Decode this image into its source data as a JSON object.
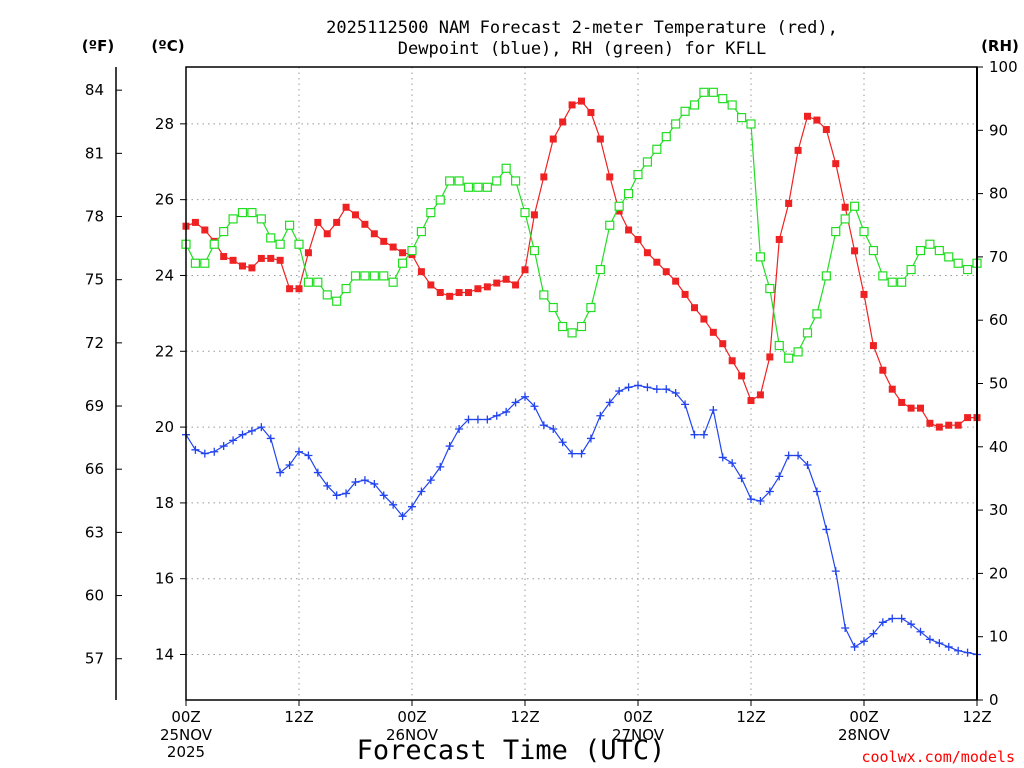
{
  "chart_data": {
    "type": "line",
    "title_line1": "2025112500 NAM Forecast 2-meter Temperature (red),",
    "title_line2": "Dewpoint (blue), RH (green) for KFLL",
    "xlabel": "Forecast Time (UTC)",
    "credit": "coolwx.com/models",
    "left_outer_unit": "(ºF)",
    "left_inner_unit": "(ºC)",
    "right_unit": "(RH)",
    "x_range_hours": [
      0,
      84
    ],
    "y_celsius_range": [
      12.8,
      29.5
    ],
    "y_rh_range": [
      0,
      100
    ],
    "fahrenheit_ticks": [
      "84",
      "81",
      "78",
      "75",
      "72",
      "69",
      "66",
      "63",
      "60",
      "57"
    ],
    "celsius_ticks": [
      "28",
      "26",
      "24",
      "22",
      "20",
      "18",
      "16",
      "14"
    ],
    "rh_ticks": [
      "100",
      "90",
      "80",
      "70",
      "60",
      "50",
      "40",
      "30",
      "20",
      "10",
      "0"
    ],
    "x_ticks": [
      {
        "hour": 0,
        "line1": "00Z",
        "line2": "25NOV",
        "line3": "2025"
      },
      {
        "hour": 12,
        "line1": "12Z",
        "line2": "",
        "line3": ""
      },
      {
        "hour": 24,
        "line1": "00Z",
        "line2": "26NOV",
        "line3": ""
      },
      {
        "hour": 36,
        "line1": "12Z",
        "line2": "",
        "line3": ""
      },
      {
        "hour": 48,
        "line1": "00Z",
        "line2": "27NOV",
        "line3": ""
      },
      {
        "hour": 60,
        "line1": "12Z",
        "line2": "",
        "line3": ""
      },
      {
        "hour": 72,
        "line1": "00Z",
        "line2": "28NOV",
        "line3": ""
      },
      {
        "hour": 84,
        "line1": "12Z",
        "line2": "",
        "line3": ""
      }
    ],
    "grid": true,
    "series": [
      {
        "name": "Temperature",
        "units": "C",
        "color": "#ee2222",
        "marker": "filled-square",
        "x": [
          0,
          1,
          2,
          3,
          4,
          5,
          6,
          7,
          8,
          9,
          10,
          11,
          12,
          13,
          14,
          15,
          16,
          17,
          18,
          19,
          20,
          21,
          22,
          23,
          24,
          25,
          26,
          27,
          28,
          29,
          30,
          31,
          32,
          33,
          34,
          35,
          36,
          37,
          38,
          39,
          40,
          41,
          42,
          43,
          44,
          45,
          46,
          47,
          48,
          49,
          50,
          51,
          52,
          53,
          54,
          55,
          56,
          57,
          58,
          59,
          60,
          61,
          62,
          63,
          64,
          65,
          66,
          67,
          68,
          69,
          70,
          71,
          72,
          73,
          74,
          75,
          76,
          77,
          78,
          79,
          80,
          81,
          82,
          83,
          84
        ],
        "values": [
          25.3,
          25.4,
          25.2,
          24.9,
          24.5,
          24.4,
          24.25,
          24.2,
          24.45,
          24.45,
          24.4,
          23.65,
          23.65,
          24.6,
          25.4,
          25.1,
          25.4,
          25.8,
          25.6,
          25.35,
          25.1,
          24.9,
          24.75,
          24.6,
          24.55,
          24.1,
          23.75,
          23.55,
          23.45,
          23.55,
          23.55,
          23.65,
          23.7,
          23.8,
          23.9,
          23.75,
          24.15,
          25.6,
          26.6,
          27.6,
          28.05,
          28.5,
          28.6,
          28.3,
          27.6,
          26.6,
          25.7,
          25.2,
          24.95,
          24.6,
          24.35,
          24.1,
          23.85,
          23.5,
          23.15,
          22.85,
          22.5,
          22.2,
          21.75,
          21.35,
          20.7,
          20.85,
          21.85,
          24.95,
          25.9,
          27.3,
          28.2,
          28.1,
          27.85,
          26.95,
          25.8,
          24.65,
          23.5,
          22.15,
          21.5,
          21.0,
          20.65,
          20.5,
          20.5,
          20.1,
          20.0,
          20.05,
          20.05,
          20.25,
          20.25
        ]
      },
      {
        "name": "Dewpoint",
        "units": "C",
        "color": "#2244ee",
        "marker": "plus",
        "x": [
          0,
          1,
          2,
          3,
          4,
          5,
          6,
          7,
          8,
          9,
          10,
          11,
          12,
          13,
          14,
          15,
          16,
          17,
          18,
          19,
          20,
          21,
          22,
          23,
          24,
          25,
          26,
          27,
          28,
          29,
          30,
          31,
          32,
          33,
          34,
          35,
          36,
          37,
          38,
          39,
          40,
          41,
          42,
          43,
          44,
          45,
          46,
          47,
          48,
          49,
          50,
          51,
          52,
          53,
          54,
          55,
          56,
          57,
          58,
          59,
          60,
          61,
          62,
          63,
          64,
          65,
          66,
          67,
          68,
          69,
          70,
          71,
          72,
          73,
          74,
          75,
          76,
          77,
          78,
          79,
          80,
          81,
          82,
          83,
          84
        ],
        "values": [
          19.8,
          19.4,
          19.3,
          19.35,
          19.5,
          19.65,
          19.8,
          19.9,
          20.0,
          19.7,
          18.8,
          19.0,
          19.35,
          19.25,
          18.8,
          18.45,
          18.2,
          18.25,
          18.55,
          18.6,
          18.5,
          18.2,
          17.95,
          17.65,
          17.9,
          18.3,
          18.6,
          18.95,
          19.5,
          19.95,
          20.2,
          20.2,
          20.2,
          20.3,
          20.4,
          20.65,
          20.8,
          20.55,
          20.05,
          19.95,
          19.6,
          19.3,
          19.3,
          19.7,
          20.3,
          20.65,
          20.95,
          21.05,
          21.1,
          21.05,
          21.0,
          21.0,
          20.9,
          20.6,
          19.8,
          19.8,
          20.45,
          19.2,
          19.05,
          18.65,
          18.1,
          18.05,
          18.3,
          18.7,
          19.25,
          19.25,
          19.0,
          18.3,
          17.3,
          16.2,
          14.7,
          14.2,
          14.35,
          14.55,
          14.85,
          14.95,
          14.95,
          14.8,
          14.6,
          14.4,
          14.3,
          14.2,
          14.1,
          14.05,
          14.0
        ]
      },
      {
        "name": "RH",
        "units": "%",
        "color": "#22dd22",
        "marker": "open-square",
        "x": [
          0,
          1,
          2,
          3,
          4,
          5,
          6,
          7,
          8,
          9,
          10,
          11,
          12,
          13,
          14,
          15,
          16,
          17,
          18,
          19,
          20,
          21,
          22,
          23,
          24,
          25,
          26,
          27,
          28,
          29,
          30,
          31,
          32,
          33,
          34,
          35,
          36,
          37,
          38,
          39,
          40,
          41,
          42,
          43,
          44,
          45,
          46,
          47,
          48,
          49,
          50,
          51,
          52,
          53,
          54,
          55,
          56,
          57,
          58,
          59,
          60,
          61,
          62,
          63,
          64,
          65,
          66,
          67,
          68,
          69,
          70,
          71,
          72,
          73,
          74,
          75,
          76,
          77,
          78,
          79,
          80,
          81,
          82,
          83,
          84
        ],
        "values": [
          72,
          69,
          69,
          72,
          74,
          76,
          77,
          77,
          76,
          73,
          72,
          75,
          72,
          66,
          66,
          64,
          63,
          65,
          67,
          67,
          67,
          67,
          66,
          69,
          71,
          74,
          77,
          79,
          82,
          82,
          81,
          81,
          81,
          82,
          84,
          82,
          77,
          71,
          64,
          62,
          59,
          58,
          59,
          62,
          68,
          75,
          78,
          80,
          83,
          85,
          87,
          89,
          91,
          93,
          94,
          96,
          96,
          95,
          94,
          92,
          91,
          70,
          65,
          56,
          54,
          55,
          58,
          61,
          67,
          74,
          76,
          78,
          74,
          71,
          67,
          66,
          66,
          68,
          71,
          72,
          71,
          70,
          69,
          68,
          69
        ]
      }
    ]
  }
}
